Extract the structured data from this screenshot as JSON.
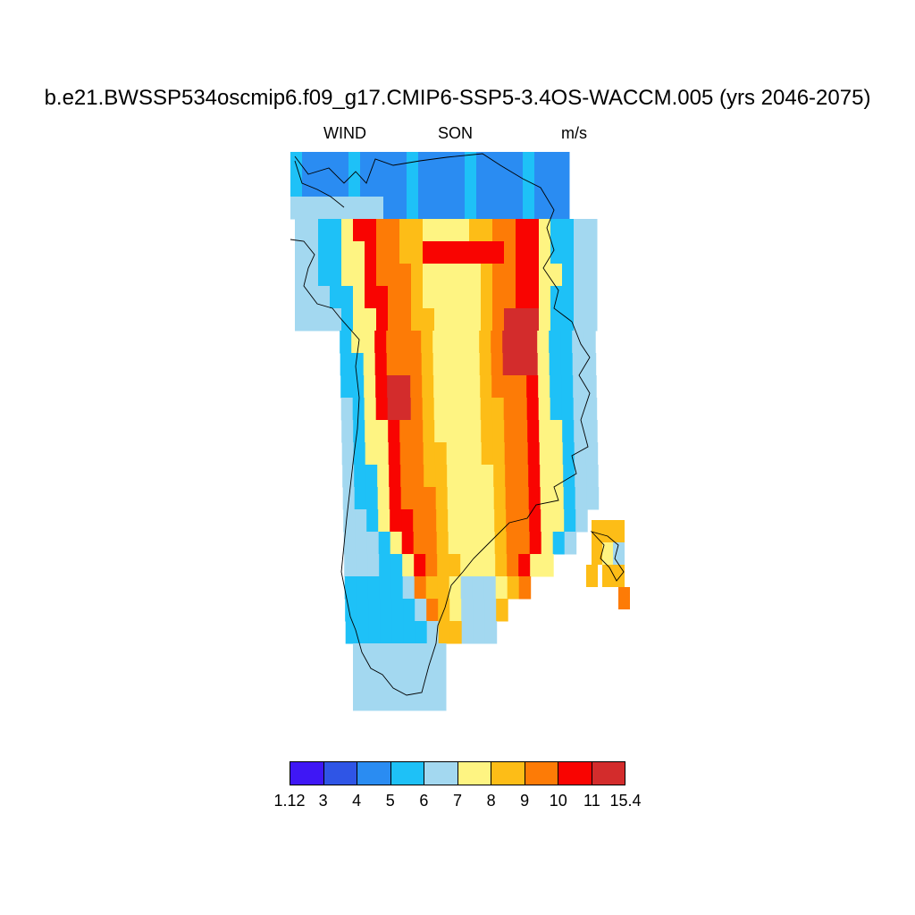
{
  "title": "b.e21.BWSSP534oscmip6.f09_g17.CMIP6-SSP5-3.4OS-WACCM.005 (yrs 2046-2075)",
  "subtitle": {
    "variable": "WIND",
    "season": "SON",
    "units": "m/s"
  },
  "colorbar": {
    "colors": [
      "#3f17f5",
      "#2f55e6",
      "#2a8cf2",
      "#1ec1f7",
      "#a3d8f0",
      "#fef482",
      "#fdbd17",
      "#fd7b06",
      "#f90401",
      "#d32c2c"
    ],
    "tick_labels": [
      "1.12",
      "3",
      "4",
      "5",
      "6",
      "7",
      "8",
      "9",
      "10",
      "11",
      "15.4"
    ]
  },
  "chart_data": {
    "type": "heatmap",
    "title": "b.e21.BWSSP534oscmip6.f09_g17.CMIP6-SSP5-3.4OS-WACCM.005 (yrs 2046-2075)",
    "variable": "WIND",
    "season": "SON",
    "units": "m/s",
    "region": "Greenland",
    "color_levels": [
      1.12,
      3,
      4,
      5,
      6,
      7,
      8,
      9,
      10,
      11,
      15.4
    ],
    "value_range": [
      1.12,
      15.4
    ],
    "pattern": "strongest winds (9-11 m/s) on the ice-sheet slopes, weaker interior (6-7 m/s), weakest along the coasts (3-5 m/s)"
  }
}
